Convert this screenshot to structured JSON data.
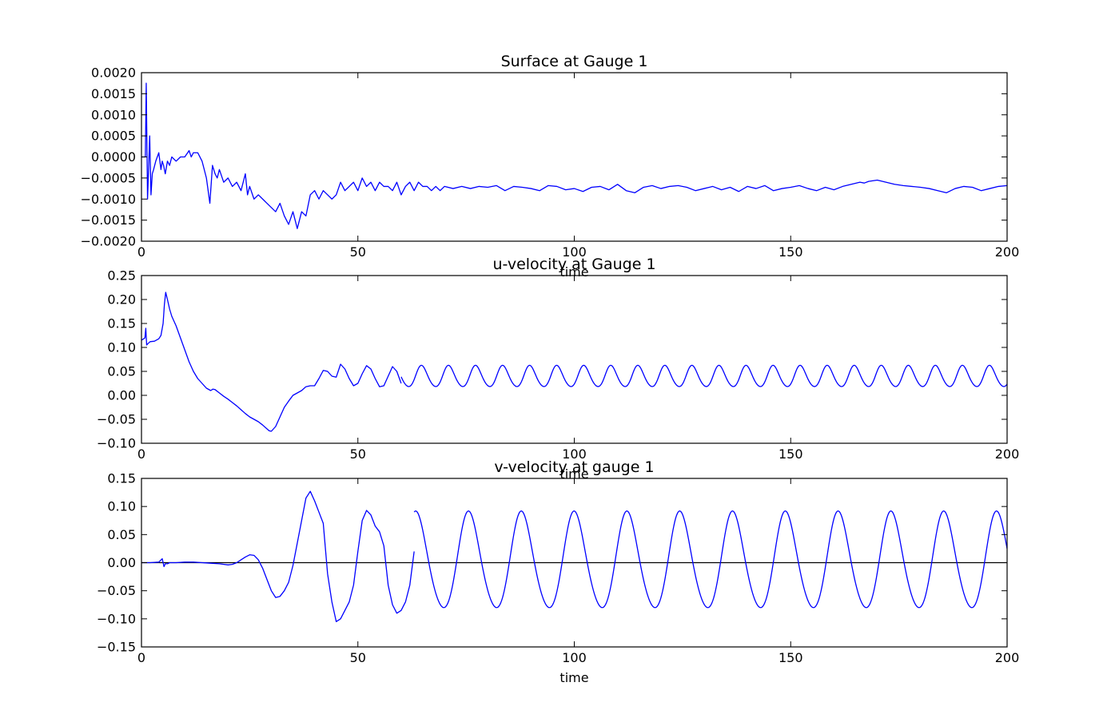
{
  "chart_data": [
    {
      "type": "line",
      "title": "Surface at Gauge 1",
      "xlabel": "time",
      "ylabel": "",
      "xlim": [
        0,
        200
      ],
      "ylim": [
        -0.002,
        0.002
      ],
      "xticks": [
        "0",
        "50",
        "100",
        "150",
        "200"
      ],
      "yticks": [
        "−0.0020",
        "−0.0015",
        "−0.0010",
        "−0.0005",
        "0.0000",
        "0.0005",
        "0.0010",
        "0.0015",
        "0.0020"
      ],
      "grid": false,
      "zero_line": false,
      "series": [
        {
          "color": "#0000ff",
          "x": [
            0,
            0.5,
            0.9,
            1.1,
            1.4,
            1.9,
            2.2,
            2.5,
            2.8,
            3.3,
            4,
            4.5,
            4.8,
            5.1,
            5.5,
            6,
            6.5,
            7,
            8,
            9,
            10,
            11,
            11.5,
            12,
            13,
            14,
            15,
            15.8,
            16.4,
            17,
            17.5,
            18,
            19,
            20,
            21,
            22,
            23,
            24,
            24.5,
            25,
            26,
            27,
            28,
            29,
            30,
            31,
            32,
            33,
            34,
            35,
            36,
            37,
            38,
            39,
            40,
            41,
            42,
            43,
            44,
            45,
            46,
            47,
            48,
            49,
            50,
            51,
            52,
            53,
            54,
            55,
            56,
            57,
            58,
            59,
            60,
            61,
            62,
            63,
            64,
            65,
            66,
            67,
            68,
            69,
            70,
            72,
            74,
            76,
            78,
            80,
            82,
            84,
            86,
            88,
            90,
            92,
            94,
            96,
            98,
            100,
            102,
            104,
            106,
            108,
            110,
            112,
            114,
            116,
            118,
            120,
            122,
            124,
            126,
            128,
            130,
            132,
            134,
            136,
            138,
            140,
            142,
            144,
            146,
            148,
            150,
            152,
            154,
            156,
            158,
            160,
            162,
            164,
            166,
            167,
            168,
            170,
            172,
            174,
            176,
            178,
            180,
            182,
            184,
            186,
            188,
            190,
            192,
            194,
            196,
            198,
            200
          ],
          "y": [
            0,
            0,
            0,
            0.00175,
            -0.001,
            0.0005,
            -0.0009,
            -0.0004,
            -0.0003,
            -0.0001,
            0.0001,
            -0.0003,
            -0.0001,
            -0.0002,
            -0.0004,
            -0.0001,
            -0.0002,
            0,
            -0.0001,
            0,
            0,
            0.00015,
            0,
            0.0001,
            0.0001,
            -0.0001,
            -0.0005,
            -0.0011,
            -0.0002,
            -0.0004,
            -0.0005,
            -0.0003,
            -0.0006,
            -0.0005,
            -0.0007,
            -0.0006,
            -0.0008,
            -0.0004,
            -0.0009,
            -0.0007,
            -0.001,
            -0.0009,
            -0.001,
            -0.0011,
            -0.0012,
            -0.0013,
            -0.0011,
            -0.0014,
            -0.0016,
            -0.0013,
            -0.0017,
            -0.0013,
            -0.0014,
            -0.0009,
            -0.0008,
            -0.001,
            -0.0008,
            -0.0009,
            -0.001,
            -0.0009,
            -0.0006,
            -0.0008,
            -0.0007,
            -0.0006,
            -0.0008,
            -0.0005,
            -0.0007,
            -0.0006,
            -0.0008,
            -0.0006,
            -0.0007,
            -0.0007,
            -0.0008,
            -0.0006,
            -0.0009,
            -0.0007,
            -0.0006,
            -0.0008,
            -0.0006,
            -0.0007,
            -0.0007,
            -0.0008,
            -0.0007,
            -0.0008,
            -0.0007,
            -0.00075,
            -0.0007,
            -0.00075,
            -0.0007,
            -0.00072,
            -0.00068,
            -0.0008,
            -0.0007,
            -0.00072,
            -0.00075,
            -0.0008,
            -0.00068,
            -0.0007,
            -0.00078,
            -0.00075,
            -0.00082,
            -0.00072,
            -0.0007,
            -0.00078,
            -0.00065,
            -0.0008,
            -0.00085,
            -0.00072,
            -0.00068,
            -0.00075,
            -0.0007,
            -0.00068,
            -0.00072,
            -0.0008,
            -0.00075,
            -0.0007,
            -0.00078,
            -0.00072,
            -0.00082,
            -0.0007,
            -0.00075,
            -0.00068,
            -0.0008,
            -0.00075,
            -0.00072,
            -0.00068,
            -0.00075,
            -0.0008,
            -0.00072,
            -0.00078,
            -0.0007,
            -0.00065,
            -0.0006,
            -0.00062,
            -0.00058,
            -0.00055,
            -0.0006,
            -0.00065,
            -0.00068,
            -0.0007,
            -0.00072,
            -0.00075,
            -0.0008,
            -0.00085,
            -0.00075,
            -0.0007,
            -0.00072,
            -0.0008,
            -0.00075,
            -0.0007,
            -0.00068
          ]
        }
      ]
    },
    {
      "type": "line",
      "title": "u-velocity at Gauge 1",
      "xlabel": "time",
      "ylabel": "",
      "xlim": [
        0,
        200
      ],
      "ylim": [
        -0.1,
        0.25
      ],
      "xticks": [
        "0",
        "50",
        "100",
        "150",
        "200"
      ],
      "yticks": [
        "−0.10",
        "−0.05",
        "0.00",
        "0.05",
        "0.10",
        "0.15",
        "0.20",
        "0.25"
      ],
      "grid": false,
      "zero_line": false,
      "series": [
        {
          "color": "#0000ff",
          "x": [
            0,
            0.5,
            0.8,
            1,
            1.2,
            1.5,
            2,
            3,
            4,
            4.5,
            5,
            5.3,
            5.6,
            6,
            6.5,
            7,
            8,
            9,
            10,
            11,
            12,
            13,
            14,
            15,
            16,
            16.5,
            17,
            18,
            19,
            20,
            21,
            22,
            23,
            24,
            25,
            26,
            27,
            28,
            29,
            29.5,
            30,
            31,
            32,
            33,
            34,
            35,
            36,
            37,
            38,
            39,
            40,
            41,
            42,
            43,
            44,
            45,
            46,
            47,
            48,
            49,
            50,
            51,
            52,
            53,
            54,
            55,
            56,
            57,
            58,
            59,
            60
          ],
          "y": [
            0.115,
            0.118,
            0.12,
            0.14,
            0.105,
            0.108,
            0.112,
            0.113,
            0.118,
            0.125,
            0.15,
            0.19,
            0.215,
            0.2,
            0.18,
            0.165,
            0.145,
            0.12,
            0.095,
            0.07,
            0.05,
            0.035,
            0.025,
            0.015,
            0.01,
            0.013,
            0.012,
            0.005,
            -0.002,
            -0.008,
            -0.015,
            -0.022,
            -0.03,
            -0.038,
            -0.045,
            -0.05,
            -0.055,
            -0.062,
            -0.07,
            -0.074,
            -0.075,
            -0.065,
            -0.045,
            -0.025,
            -0.012,
            0,
            0.005,
            0.01,
            0.018,
            0.02,
            0.02,
            0.035,
            0.052,
            0.05,
            0.04,
            0.038,
            0.065,
            0.055,
            0.035,
            0.02,
            0.025,
            0.045,
            0.062,
            0.055,
            0.035,
            0.018,
            0.02,
            0.04,
            0.06,
            0.05,
            0.025
          ]
        },
        {
          "color": "#0000ff",
          "periodic": {
            "x_start": 60,
            "x_end": 200,
            "mean": 0.039,
            "amplitude": 0.024,
            "period": 6.25,
            "peak_at": 58.5
          }
        }
      ]
    },
    {
      "type": "line",
      "title": "v-velocity at gauge 1",
      "xlabel": "time",
      "ylabel": "",
      "xlim": [
        0,
        200
      ],
      "ylim": [
        -0.15,
        0.15
      ],
      "xticks": [
        "0",
        "50",
        "100",
        "150",
        "200"
      ],
      "yticks": [
        "−0.15",
        "−0.10",
        "−0.05",
        "0.00",
        "0.05",
        "0.10",
        "0.15"
      ],
      "grid": false,
      "zero_line": true,
      "series": [
        {
          "color": "#0000ff",
          "x": [
            0,
            2,
            4,
            4.8,
            5.2,
            5.5,
            6,
            6.5,
            7,
            8,
            10,
            12,
            14,
            16,
            18,
            20,
            21,
            22,
            23,
            24,
            25,
            26,
            27,
            28,
            29,
            30,
            31,
            32,
            33,
            34,
            35,
            36,
            37,
            38,
            39,
            40,
            41,
            42,
            43,
            44,
            45,
            46,
            47,
            48,
            49,
            50,
            51,
            52,
            53,
            54,
            55,
            56,
            57,
            58,
            59,
            60,
            61,
            62,
            63
          ],
          "y": [
            0,
            0,
            0.001,
            0.007,
            -0.007,
            -0.002,
            -0.002,
            0,
            0,
            0,
            0.001,
            0.001,
            0,
            -0.001,
            -0.002,
            -0.004,
            -0.003,
            0,
            0.005,
            0.01,
            0.014,
            0.013,
            0.005,
            -0.01,
            -0.03,
            -0.05,
            -0.062,
            -0.06,
            -0.05,
            -0.035,
            -0.005,
            0.035,
            0.075,
            0.115,
            0.127,
            0.11,
            0.09,
            0.07,
            -0.02,
            -0.07,
            -0.105,
            -0.1,
            -0.085,
            -0.07,
            -0.04,
            0.02,
            0.075,
            0.093,
            0.085,
            0.065,
            0.055,
            0.03,
            -0.04,
            -0.075,
            -0.09,
            -0.085,
            -0.07,
            -0.04,
            0.02
          ]
        },
        {
          "color": "#0000ff",
          "periodic": {
            "x_start": 63,
            "x_end": 200,
            "mean": 0,
            "amplitude": 0.093,
            "period": 12.2,
            "peak_at": 63.5
          }
        }
      ]
    }
  ]
}
